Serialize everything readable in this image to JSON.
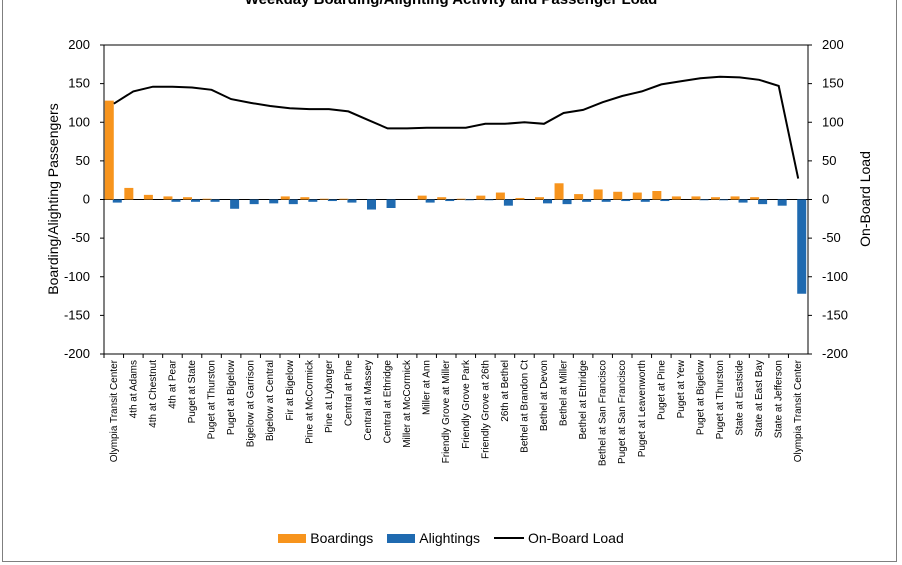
{
  "chart_data": {
    "type": "bar",
    "title": "Weekday Boarding/Alighting Activity and Passenger Load",
    "ylabel": "Boarding/Alighting Passengers",
    "y2label": "On-Board Load",
    "ylim": [
      -200,
      200
    ],
    "y2lim": [
      -200,
      200
    ],
    "yticks": [
      "200",
      "150",
      "100",
      "50",
      "0",
      "-50",
      "-100",
      "-150",
      "-200"
    ],
    "y2ticks": [
      "200",
      "150",
      "100",
      "50",
      "0",
      "-50",
      "-100",
      "-150",
      "-200"
    ],
    "categories": [
      "Olympia Transit Center",
      "4th at Adams",
      "4th at Chestnut",
      "4th at Pear",
      "Puget at State",
      "Puget at Thurston",
      "Puget at Bigelow",
      "Bigelow at Garrison",
      "Bigelow at Central",
      "Fir at Bigelow",
      "Pine at McCormick",
      "Pine at Lybarger",
      "Central at Pine",
      "Central at Massey",
      "Central at Ethridge",
      "Miller at McCormick",
      "Miller at Ann",
      "Friendly Grove at Miller",
      "Friendly Grove Park",
      "Friendly Grove at 26th",
      "26th at Bethel",
      "Bethel at Brandon Ct",
      "Bethel at Devon",
      "Bethel at Miller",
      "Bethel at Ethridge",
      "Bethel at San Francisco",
      "Puget at San Francisco",
      "Puget at Leavenworth",
      "Puget at Pine",
      "Puget at Yew",
      "Puget at Bigelow",
      "Puget at Thurston",
      "State at Eastside",
      "State at East Bay",
      "State at Jefferson",
      "Olympia Transit Center"
    ],
    "series": [
      {
        "name": "Boardings",
        "color": "#f7941d",
        "values": [
          128,
          15,
          6,
          4,
          3,
          1,
          0,
          0,
          0,
          4,
          3,
          1,
          1,
          0,
          0,
          0,
          5,
          3,
          1,
          5,
          9,
          2,
          3,
          21,
          7,
          13,
          10,
          9,
          11,
          4,
          4,
          3,
          4,
          3,
          0,
          0
        ]
      },
      {
        "name": "Alightings",
        "color": "#1f6ab0",
        "values": [
          -4,
          0,
          0,
          -3,
          -3,
          -3,
          -12,
          -6,
          -5,
          -6,
          -3,
          -2,
          -4,
          -13,
          -11,
          0,
          -4,
          -2,
          -1,
          -1,
          -8,
          0,
          -5,
          -6,
          -3,
          -3,
          -2,
          -3,
          -2,
          0,
          -1,
          -1,
          -4,
          -6,
          -8,
          -122
        ]
      },
      {
        "name": "On-Board Load",
        "color": "#000000",
        "values": [
          124,
          140,
          146,
          146,
          145,
          142,
          130,
          125,
          121,
          118,
          117,
          117,
          114,
          103,
          92,
          92,
          93,
          93,
          93,
          98,
          98,
          100,
          98,
          112,
          116,
          126,
          134,
          140,
          149,
          153,
          157,
          159,
          158,
          155,
          147,
          27
        ]
      }
    ]
  }
}
